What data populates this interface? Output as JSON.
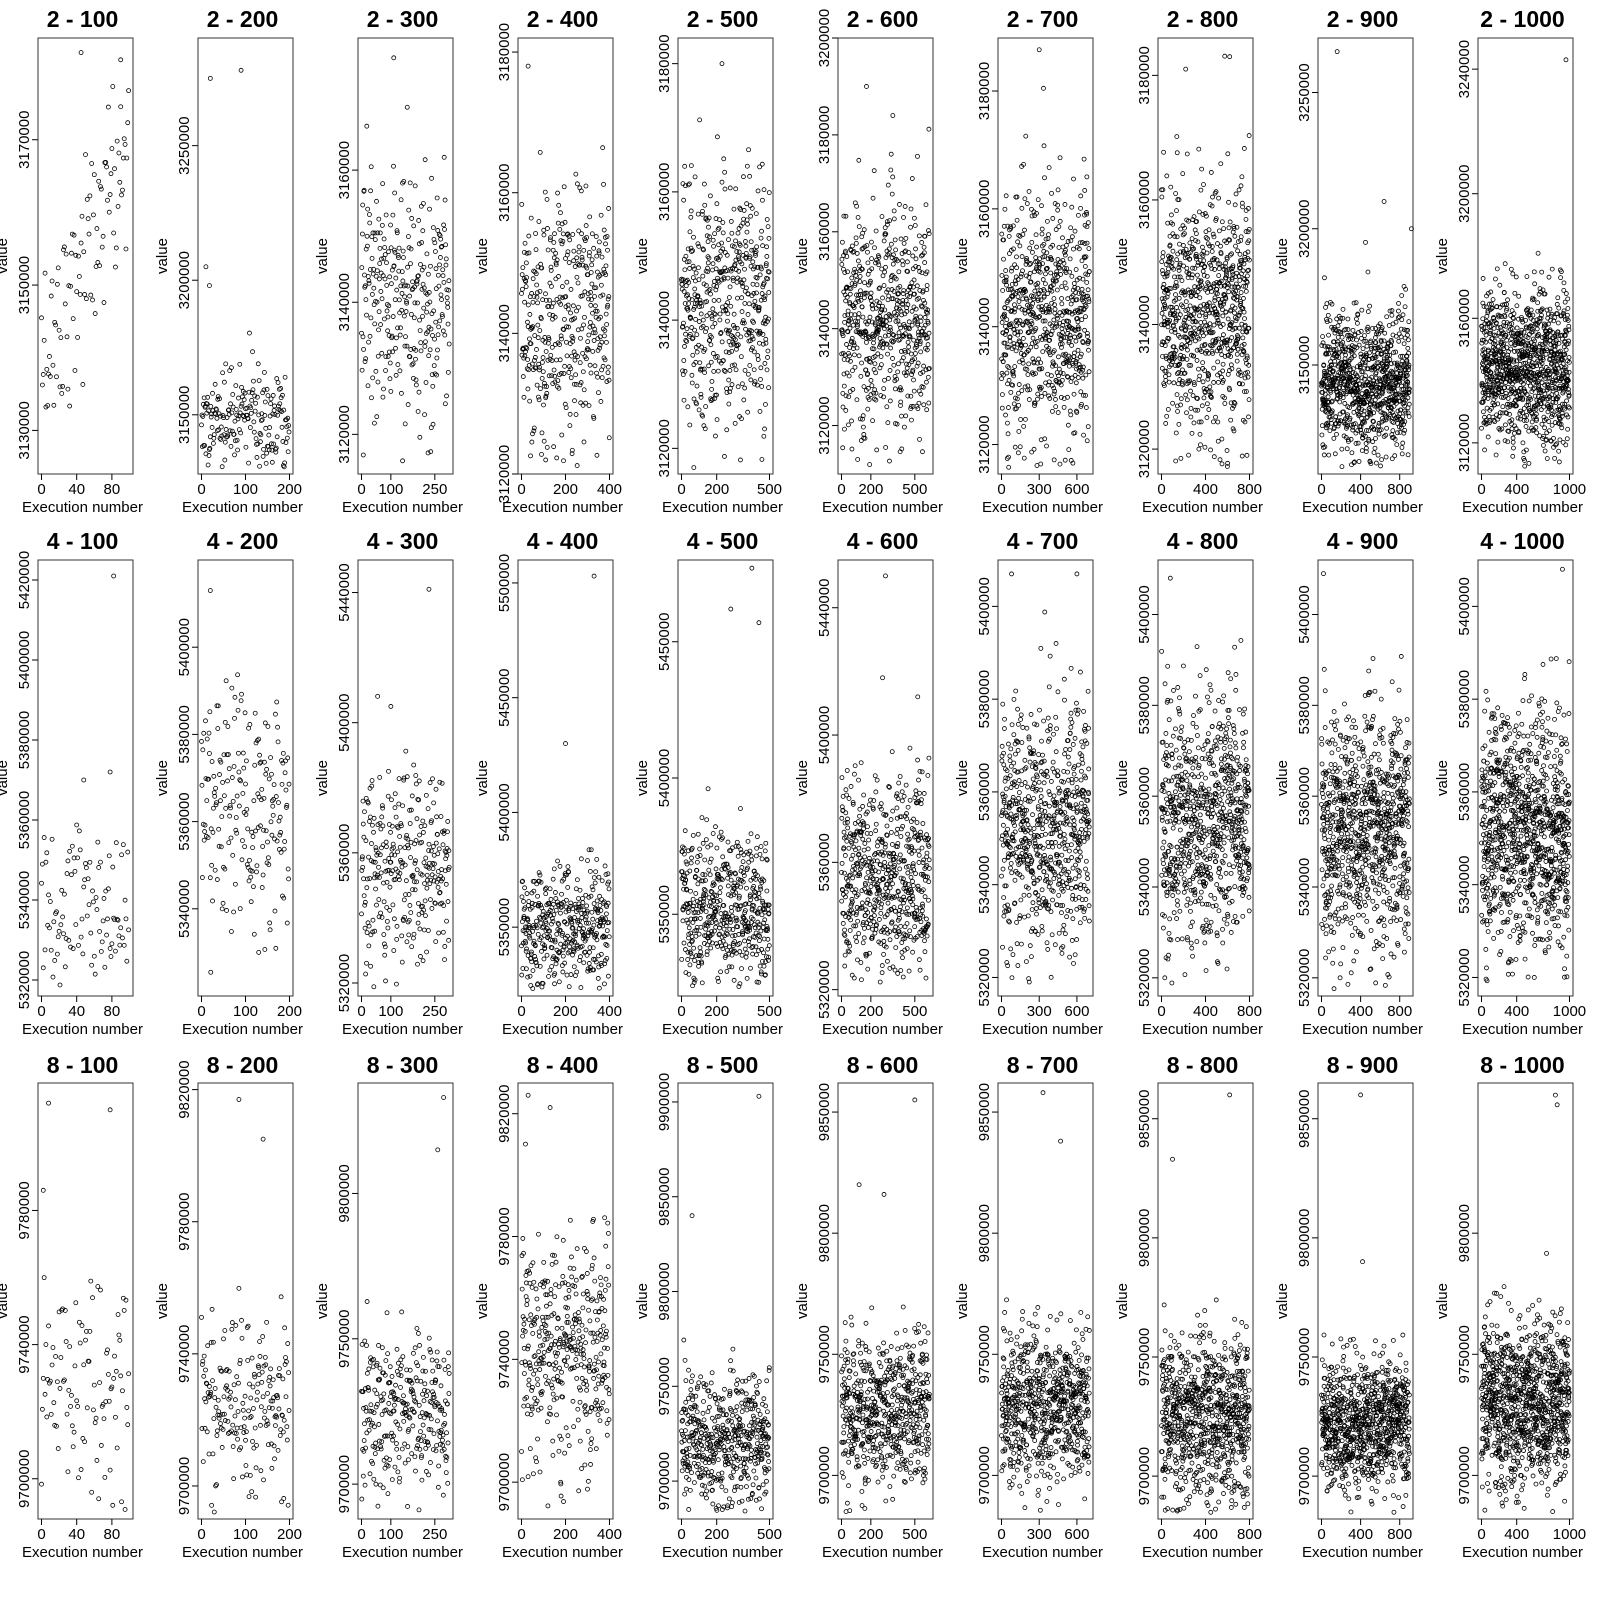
{
  "chart_data": {
    "type": "scatter",
    "xlabel": "Execution number",
    "ylabel": "value",
    "panels": [
      {
        "title": "2  -  100",
        "n": 100,
        "xticks": [
          0,
          40,
          80
        ],
        "yticks": [
          3130000,
          3150000,
          3170000
        ],
        "ylim": [
          3124000,
          3184000
        ],
        "center": 3148000,
        "spread": 0.7,
        "trend": 0.5,
        "outliers": [
          [
            45,
            3182000
          ],
          [
            90,
            3181000
          ]
        ]
      },
      {
        "title": "2  -  200",
        "n": 200,
        "xticks": [
          0,
          100,
          200
        ],
        "yticks": [
          3150000,
          3200000,
          3250000
        ],
        "ylim": [
          3128000,
          3290000
        ],
        "center": 3147000,
        "spread": 0.35,
        "trend": 0,
        "outliers": [
          [
            20,
            3275000
          ],
          [
            90,
            3278000
          ],
          [
            10,
            3205000
          ],
          [
            18,
            3198000
          ]
        ]
      },
      {
        "title": "2  -  300",
        "n": 300,
        "xticks": [
          0,
          100,
          250
        ],
        "yticks": [
          3120000,
          3140000,
          3160000
        ],
        "ylim": [
          3114000,
          3180000
        ],
        "center": 3142000,
        "spread": 0.9,
        "trend": 0,
        "outliers": [
          [
            110,
            3177000
          ],
          [
            140,
            3116000
          ]
        ]
      },
      {
        "title": "2  -  400",
        "n": 400,
        "xticks": [
          0,
          200,
          400
        ],
        "yticks": [
          3120000,
          3140000,
          3160000,
          3180000
        ],
        "ylim": [
          3120000,
          3182000
        ],
        "center": 3143000,
        "spread": 0.9,
        "trend": 0,
        "outliers": [
          [
            30,
            3178000
          ],
          [
            110,
            3122000
          ]
        ]
      },
      {
        "title": "2  -  500",
        "n": 500,
        "xticks": [
          0,
          200,
          500
        ],
        "yticks": [
          3120000,
          3140000,
          3160000,
          3180000
        ],
        "ylim": [
          3116000,
          3184000
        ],
        "center": 3143000,
        "spread": 0.9,
        "trend": 0,
        "outliers": [
          [
            230,
            3180000
          ],
          [
            70,
            3117000
          ]
        ]
      },
      {
        "title": "2  -  600",
        "n": 600,
        "xticks": [
          0,
          200,
          500
        ],
        "yticks": [
          3120000,
          3140000,
          3160000,
          3180000,
          3200000
        ],
        "ylim": [
          3110000,
          3200000
        ],
        "center": 3142000,
        "spread": 0.8,
        "trend": 0,
        "outliers": [
          [
            170,
            3190000
          ],
          [
            350,
            3184000
          ],
          [
            110,
            3113000
          ]
        ]
      },
      {
        "title": "2  -  700",
        "n": 700,
        "xticks": [
          0,
          300,
          600
        ],
        "yticks": [
          3120000,
          3140000,
          3160000,
          3180000
        ],
        "ylim": [
          3115000,
          3189000
        ],
        "center": 3142000,
        "spread": 0.85,
        "trend": 0,
        "outliers": [
          [
            300,
            3187000
          ]
        ]
      },
      {
        "title": "2  -  800",
        "n": 800,
        "xticks": [
          0,
          400,
          800
        ],
        "yticks": [
          3120000,
          3140000,
          3160000,
          3180000
        ],
        "ylim": [
          3116000,
          3186000
        ],
        "center": 3142000,
        "spread": 0.85,
        "trend": 0,
        "outliers": [
          [
            620,
            3183000
          ],
          [
            220,
            3181000
          ],
          [
            340,
            3120000
          ]
        ]
      },
      {
        "title": "2  -  900",
        "n": 900,
        "xticks": [
          0,
          400,
          800
        ],
        "yticks": [
          3150000,
          3200000,
          3250000
        ],
        "ylim": [
          3110000,
          3270000
        ],
        "center": 3143000,
        "spread": 0.5,
        "trend": 0,
        "outliers": [
          [
            160,
            3265000
          ],
          [
            640,
            3210000
          ],
          [
            450,
            3195000
          ],
          [
            30,
            3182000
          ],
          [
            920,
            3200000
          ]
        ]
      },
      {
        "title": "2  -  1000",
        "n": 1000,
        "xticks": [
          0,
          400,
          1000
        ],
        "yticks": [
          3120000,
          3160000,
          3200000,
          3240000
        ],
        "ylim": [
          3110000,
          3250000
        ],
        "center": 3145000,
        "spread": 0.55,
        "trend": 0,
        "outliers": [
          [
            960,
            3243000
          ]
        ]
      },
      {
        "title": "4  -  100",
        "n": 100,
        "xticks": [
          0,
          40,
          80
        ],
        "yticks": [
          5320000,
          5340000,
          5360000,
          5380000,
          5400000,
          5420000
        ],
        "ylim": [
          5316000,
          5425000
        ],
        "center": 5338000,
        "spread": 0.6,
        "trend": 0,
        "outliers": [
          [
            82,
            5421000
          ],
          [
            78,
            5372000
          ],
          [
            48,
            5370000
          ]
        ]
      },
      {
        "title": "4  -  200",
        "n": 200,
        "xticks": [
          0,
          100,
          200
        ],
        "yticks": [
          5340000,
          5360000,
          5380000,
          5400000
        ],
        "ylim": [
          5320000,
          5420000
        ],
        "center": 5362000,
        "spread": 0.9,
        "trend": 0,
        "outliers": [
          [
            20,
            5413000
          ],
          [
            130,
            5330000
          ]
        ]
      },
      {
        "title": "4  -  300",
        "n": 300,
        "xticks": [
          0,
          100,
          250
        ],
        "yticks": [
          5320000,
          5360000,
          5400000,
          5440000
        ],
        "ylim": [
          5316000,
          5450000
        ],
        "center": 5355000,
        "spread": 0.7,
        "trend": 0,
        "outliers": [
          [
            230,
            5441000
          ],
          [
            100,
            5405000
          ]
        ]
      },
      {
        "title": "4  -  400",
        "n": 400,
        "xticks": [
          0,
          200,
          400
        ],
        "yticks": [
          5350000,
          5400000,
          5450000,
          5500000
        ],
        "ylim": [
          5320000,
          5510000
        ],
        "center": 5350000,
        "spread": 0.45,
        "trend": 0,
        "outliers": [
          [
            330,
            5503000
          ],
          [
            200,
            5430000
          ]
        ]
      },
      {
        "title": "4  -  500",
        "n": 500,
        "xticks": [
          0,
          200,
          500
        ],
        "yticks": [
          5350000,
          5400000,
          5450000
        ],
        "ylim": [
          5320000,
          5480000
        ],
        "center": 5352000,
        "spread": 0.55,
        "trend": 0,
        "outliers": [
          [
            400,
            5477000
          ],
          [
            280,
            5462000
          ],
          [
            440,
            5457000
          ]
        ]
      },
      {
        "title": "4  -  600",
        "n": 600,
        "xticks": [
          0,
          200,
          500
        ],
        "yticks": [
          5320000,
          5360000,
          5400000,
          5440000
        ],
        "ylim": [
          5318000,
          5455000
        ],
        "center": 5355000,
        "spread": 0.7,
        "trend": 0,
        "outliers": [
          [
            300,
            5450000
          ],
          [
            280,
            5418000
          ],
          [
            520,
            5412000
          ]
        ]
      },
      {
        "title": "4  -  700",
        "n": 700,
        "xticks": [
          0,
          300,
          600
        ],
        "yticks": [
          5320000,
          5340000,
          5360000,
          5380000,
          5400000
        ],
        "ylim": [
          5316000,
          5410000
        ],
        "center": 5352000,
        "spread": 0.85,
        "trend": 0,
        "outliers": [
          [
            80,
            5407000
          ],
          [
            600,
            5407000
          ]
        ]
      },
      {
        "title": "4  -  800",
        "n": 800,
        "xticks": [
          0,
          400,
          800
        ],
        "yticks": [
          5320000,
          5340000,
          5360000,
          5380000,
          5400000
        ],
        "ylim": [
          5316000,
          5412000
        ],
        "center": 5355000,
        "spread": 0.85,
        "trend": 0,
        "outliers": [
          [
            30,
            5320000
          ],
          [
            80,
            5408000
          ]
        ]
      },
      {
        "title": "4  -  900",
        "n": 900,
        "xticks": [
          0,
          400,
          800
        ],
        "yticks": [
          5320000,
          5340000,
          5360000,
          5380000,
          5400000
        ],
        "ylim": [
          5316000,
          5412000
        ],
        "center": 5352000,
        "spread": 0.85,
        "trend": 0,
        "outliers": [
          [
            20,
            5409000
          ],
          [
            190,
            5320000
          ]
        ]
      },
      {
        "title": "4  -  1000",
        "n": 1000,
        "xticks": [
          0,
          400,
          1000
        ],
        "yticks": [
          5320000,
          5340000,
          5360000,
          5380000,
          5400000
        ],
        "ylim": [
          5316000,
          5410000
        ],
        "center": 5352000,
        "spread": 0.85,
        "trend": 0,
        "outliers": [
          [
            920,
            5408000
          ],
          [
            600,
            5320000
          ]
        ]
      },
      {
        "title": "8  -  100",
        "n": 100,
        "xticks": [
          0,
          40,
          80
        ],
        "yticks": [
          9700000,
          9740000,
          9780000
        ],
        "ylim": [
          9688000,
          9818000
        ],
        "center": 9728000,
        "spread": 0.7,
        "trend": 0,
        "outliers": [
          [
            8,
            9812000
          ],
          [
            78,
            9810000
          ],
          [
            2,
            9786000
          ]
        ]
      },
      {
        "title": "8  -  200",
        "n": 200,
        "xticks": [
          0,
          100,
          200
        ],
        "yticks": [
          9700000,
          9740000,
          9780000,
          9820000
        ],
        "ylim": [
          9690000,
          9822000
        ],
        "center": 9725000,
        "spread": 0.6,
        "trend": 0,
        "outliers": [
          [
            85,
            9817000
          ],
          [
            140,
            9805000
          ]
        ]
      },
      {
        "title": "8  -  300",
        "n": 300,
        "xticks": [
          0,
          100,
          250
        ],
        "yticks": [
          9700000,
          9750000,
          9800000
        ],
        "ylim": [
          9688000,
          9838000
        ],
        "center": 9725000,
        "spread": 0.6,
        "trend": 0,
        "outliers": [
          [
            280,
            9833000
          ],
          [
            260,
            9815000
          ]
        ]
      },
      {
        "title": "8  -  400",
        "n": 400,
        "xticks": [
          0,
          200,
          400
        ],
        "yticks": [
          9700000,
          9740000,
          9780000,
          9820000
        ],
        "ylim": [
          9688000,
          9830000
        ],
        "center": 9742000,
        "spread": 0.8,
        "trend": 0,
        "outliers": [
          [
            30,
            9826000
          ],
          [
            130,
            9822000
          ]
        ]
      },
      {
        "title": "8  -  500",
        "n": 500,
        "xticks": [
          0,
          200,
          500
        ],
        "yticks": [
          9700000,
          9750000,
          9800000,
          9850000,
          9900000
        ],
        "ylim": [
          9680000,
          9910000
        ],
        "center": 9722000,
        "spread": 0.45,
        "trend": 0,
        "outliers": [
          [
            440,
            9903000
          ],
          [
            60,
            9840000
          ]
        ]
      },
      {
        "title": "8  -  600",
        "n": 600,
        "xticks": [
          0,
          200,
          500
        ],
        "yticks": [
          9700000,
          9750000,
          9800000,
          9850000
        ],
        "ylim": [
          9682000,
          9862000
        ],
        "center": 9728000,
        "spread": 0.55,
        "trend": 0,
        "outliers": [
          [
            500,
            9855000
          ],
          [
            120,
            9820000
          ],
          [
            290,
            9816000
          ]
        ]
      },
      {
        "title": "8  -  700",
        "n": 700,
        "xticks": [
          0,
          300,
          600
        ],
        "yticks": [
          9700000,
          9750000,
          9800000,
          9850000
        ],
        "ylim": [
          9682000,
          9862000
        ],
        "center": 9728000,
        "spread": 0.55,
        "trend": 0,
        "outliers": [
          [
            330,
            9858000
          ],
          [
            470,
            9838000
          ]
        ]
      },
      {
        "title": "8  -  800",
        "n": 800,
        "xticks": [
          0,
          400,
          800
        ],
        "yticks": [
          9700000,
          9750000,
          9800000,
          9850000
        ],
        "ylim": [
          9682000,
          9865000
        ],
        "center": 9725000,
        "spread": 0.6,
        "trend": 0,
        "outliers": [
          [
            620,
            9860000
          ],
          [
            100,
            9833000
          ]
        ]
      },
      {
        "title": "8  -  900",
        "n": 900,
        "xticks": [
          0,
          400,
          800
        ],
        "yticks": [
          9700000,
          9750000,
          9800000,
          9850000
        ],
        "ylim": [
          9682000,
          9865000
        ],
        "center": 9722000,
        "spread": 0.45,
        "trend": 0,
        "outliers": [
          [
            400,
            9860000
          ],
          [
            420,
            9790000
          ]
        ]
      },
      {
        "title": "8  -  1000",
        "n": 1000,
        "xticks": [
          0,
          400,
          1000
        ],
        "yticks": [
          9700000,
          9750000,
          9800000
        ],
        "ylim": [
          9682000,
          9862000
        ],
        "center": 9730000,
        "spread": 0.6,
        "trend": 0,
        "outliers": [
          [
            840,
            9857000
          ],
          [
            860,
            9853000
          ]
        ]
      }
    ]
  }
}
